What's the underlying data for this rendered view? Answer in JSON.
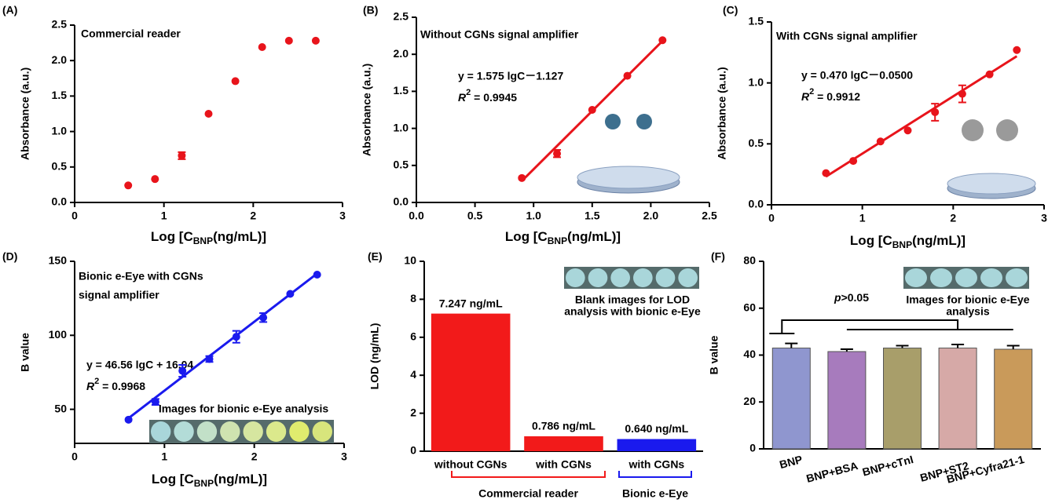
{
  "chart_data": [
    {
      "type": "scatter",
      "panel_label": "(A)",
      "title": "Commercial reader",
      "color": "#e8141b",
      "x_label": [
        "Log [C",
        "BNP",
        "(ng/mL)]"
      ],
      "y_label": "Absorbance (a.u.)",
      "x": [
        0.6,
        0.9,
        1.2,
        1.5,
        1.8,
        2.1,
        2.4,
        2.7
      ],
      "values": [
        0.24,
        0.33,
        0.66,
        1.25,
        1.71,
        2.19,
        2.28,
        2.28
      ],
      "errors": [
        0,
        0,
        0.05,
        0,
        0,
        0,
        0,
        0
      ],
      "xlim": [
        0,
        3
      ],
      "xticks": [
        0,
        1,
        2,
        3
      ],
      "ylim": [
        0,
        2.5
      ],
      "yticks": [
        {
          "value": 0,
          "label": "0.0"
        },
        0.5,
        {
          "value": 1,
          "label": "1.0"
        },
        1.5,
        {
          "value": 2,
          "label": "2.0"
        },
        2.5
      ]
    },
    {
      "type": "scatter",
      "panel_label": "(B)",
      "title": "Without CGNs signal amplifier",
      "color": "#e8141b",
      "x_label": [
        "Log [C",
        "BNP",
        "(ng/mL)]"
      ],
      "y_label": "Absorbance (a.u.)",
      "x": [
        0.9,
        1.2,
        1.5,
        1.8,
        2.1
      ],
      "values": [
        0.33,
        0.66,
        1.25,
        1.71,
        2.19
      ],
      "errors": [
        0,
        0.05,
        0,
        0,
        0
      ],
      "fit_x": [
        0.9,
        2.1
      ],
      "fit_y": [
        0.29,
        2.18
      ],
      "equation": "y = 1.575 lgC－1.127",
      "r2": [
        "R",
        "2",
        " = 0.9945"
      ],
      "xlim": [
        0,
        2.5
      ],
      "xticks": [
        {
          "value": 0,
          "label": "0.0"
        },
        0.5,
        {
          "value": 1,
          "label": "1.0"
        },
        1.5,
        {
          "value": 2,
          "label": "2.0"
        },
        2.5
      ],
      "ylim": [
        0,
        2.5
      ],
      "yticks": [
        {
          "value": 0,
          "label": "0.0"
        },
        0.5,
        {
          "value": 1,
          "label": "1.0"
        },
        1.5,
        {
          "value": 2,
          "label": "2.0"
        },
        2.5
      ]
    },
    {
      "type": "scatter",
      "panel_label": "(C)",
      "title": "With CGNs signal amplifier",
      "color": "#e8141b",
      "x_label": [
        "Log [C",
        "BNP",
        "(ng/mL)]"
      ],
      "y_label": "Absorbance (a.u.)",
      "x": [
        0.6,
        0.9,
        1.2,
        1.5,
        1.8,
        2.1,
        2.4,
        2.7
      ],
      "values": [
        0.26,
        0.36,
        0.52,
        0.61,
        0.76,
        0.91,
        1.07,
        1.27
      ],
      "errors": [
        0,
        0,
        0,
        0,
        0.07,
        0.07,
        0,
        0
      ],
      "fit_x": [
        0.6,
        2.7
      ],
      "fit_y": [
        0.232,
        1.219
      ],
      "equation": "y = 0.470 lgC－0.0500",
      "r2": [
        "R",
        "2",
        " = 0.9912"
      ],
      "xlim": [
        0,
        3
      ],
      "xticks": [
        0,
        1,
        2,
        3
      ],
      "ylim": [
        0,
        1.5
      ],
      "yticks": [
        {
          "value": 0,
          "label": "0.0"
        },
        0.5,
        {
          "value": 1,
          "label": "1.0"
        },
        1.5
      ]
    },
    {
      "type": "scatter",
      "panel_label": "(D)",
      "title": [
        "Bionic e-Eye with CGNs",
        "signal amplifier"
      ],
      "color": "#1a1aee",
      "x_label": [
        "Log [C",
        "BNP",
        "(ng/mL)]"
      ],
      "y_label": "B value",
      "x": [
        0.6,
        0.9,
        1.2,
        1.5,
        1.8,
        2.1,
        2.4,
        2.7
      ],
      "values": [
        43,
        55,
        76,
        84,
        99,
        112,
        128,
        141
      ],
      "errors": [
        0,
        2,
        4,
        2,
        4,
        3,
        0,
        0
      ],
      "fit_x": [
        0.6,
        2.7
      ],
      "fit_y": [
        43.98,
        141.75
      ],
      "equation": "y = 46.56 lgC + 16.04",
      "r2": [
        "R",
        "2",
        " = 0.9968"
      ],
      "inset_caption": [
        "Images for bionic e-Eye analysis"
      ],
      "xlim": [
        0,
        3
      ],
      "xticks": [
        0,
        1,
        2,
        3
      ],
      "ylim": [
        27,
        150
      ],
      "yticks": [
        50,
        100,
        150
      ]
    },
    {
      "type": "bar",
      "panel_label": "(E)",
      "y_label": "LOD (ng/mL)",
      "categories": [
        "without CGNs",
        "with CGNs",
        "with CGNs"
      ],
      "values": [
        7.247,
        0.786,
        0.64
      ],
      "value_labels": [
        "7.247 ng/mL",
        "0.786 ng/mL",
        "0.640 ng/mL"
      ],
      "colors": [
        "#f21a1a",
        "#f21a1a",
        "#1a1aee"
      ],
      "group_labels": [
        "Commercial reader",
        "Bionic e-Eye"
      ],
      "group_colors": [
        "#f21a1a",
        "#1a1aee"
      ],
      "inset_caption": [
        "Blank images for LOD",
        "analysis with bionic e-Eye"
      ],
      "ylim": [
        0,
        10
      ],
      "yticks": [
        0,
        2,
        4,
        6,
        8,
        10
      ]
    },
    {
      "type": "bar",
      "panel_label": "(F)",
      "y_label": "B value",
      "categories": [
        "BNP",
        "BNP+BSA",
        "BNP+cTnI",
        "BNP+ST2",
        "BNP+Cyfra21-1"
      ],
      "values": [
        43,
        41.5,
        43,
        43,
        42.5
      ],
      "errors": [
        2,
        1,
        1,
        1.5,
        1.5
      ],
      "colors": [
        "#8f96cf",
        "#a77bbd",
        "#a89e6a",
        "#d6a9a7",
        "#c99a5a"
      ],
      "annotation": [
        "p",
        ">0.05"
      ],
      "inset_caption": [
        "Images for bionic e-Eye",
        "analysis"
      ],
      "ylim": [
        0,
        80
      ],
      "yticks": [
        0,
        20,
        40,
        60,
        80
      ]
    }
  ]
}
